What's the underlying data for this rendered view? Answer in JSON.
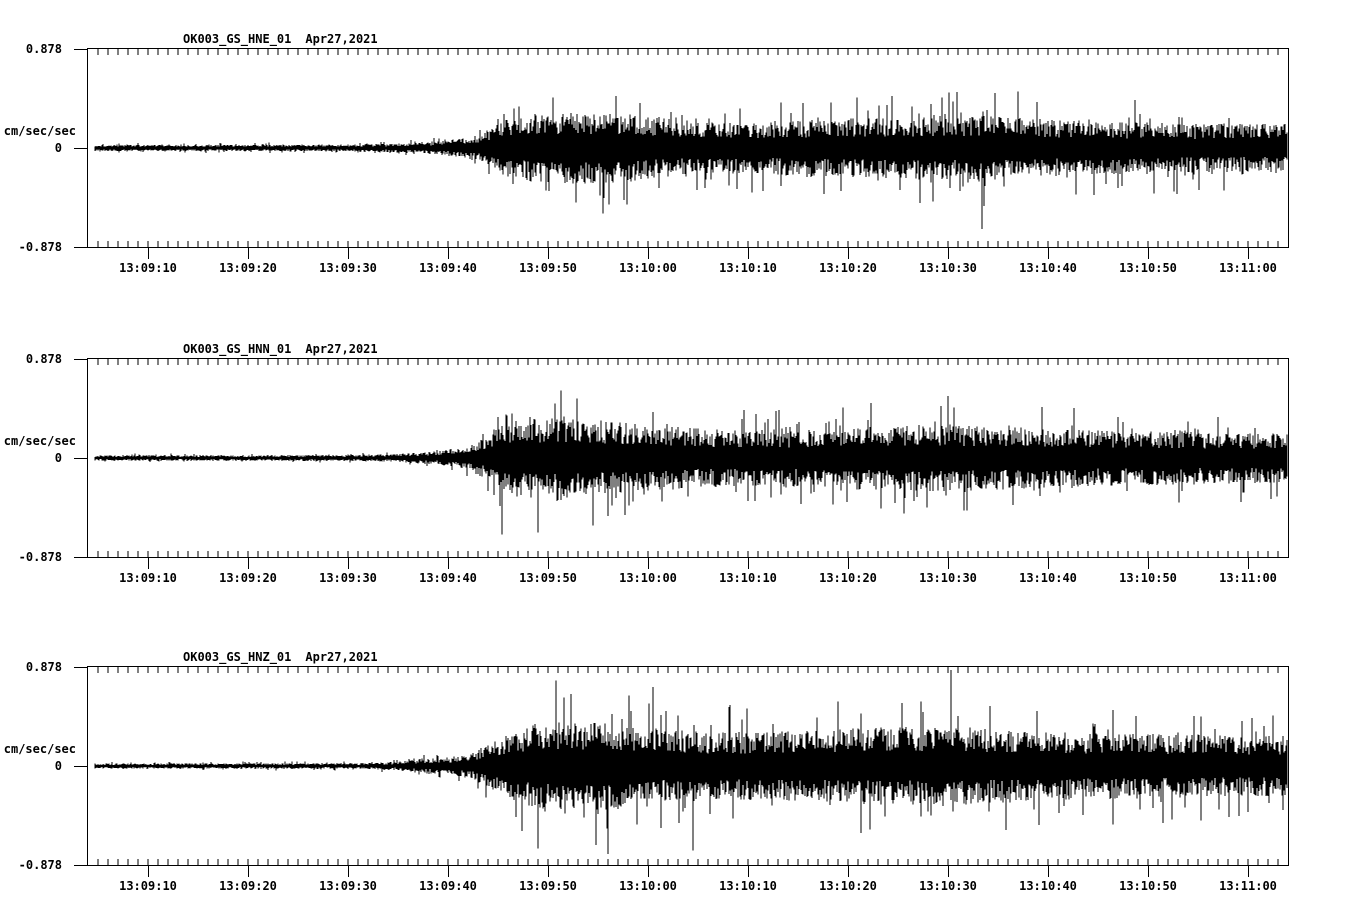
{
  "figure": {
    "background": "#ffffff",
    "ink": "#000000"
  },
  "chart_data": {
    "type": "line",
    "subtype": "seismogram-3-component",
    "title": "",
    "xlabel": "",
    "ylabel": "cm/sec/sec",
    "ylim": [
      -0.878,
      0.878
    ],
    "yticks": [
      "0.878",
      "0",
      "-0.878"
    ],
    "x_start": "13:09:04",
    "x_end": "13:11:04",
    "x_minor_tick_seconds": 1,
    "x_major_tick_seconds": 10,
    "grid": false,
    "legend": "none",
    "xtick_labels": [
      "13:09:10",
      "13:09:20",
      "13:09:30",
      "13:09:40",
      "13:09:50",
      "13:10:00",
      "13:10:10",
      "13:10:20",
      "13:10:30",
      "13:10:40",
      "13:10:50",
      "13:11:00"
    ],
    "panels": [
      {
        "station": "OK003_GS_HNE_01",
        "date": "Apr27,2021",
        "units": "cm/sec/sec",
        "y_top": "0.878",
        "y_mid": "0",
        "y_bottom": "-0.878",
        "seed": 101,
        "envelope": [
          [
            0,
            0.022,
            0.045
          ],
          [
            25,
            0.022,
            0.048
          ],
          [
            30,
            0.028,
            0.055
          ],
          [
            34,
            0.04,
            0.08
          ],
          [
            37,
            0.06,
            0.13
          ],
          [
            39.5,
            0.1,
            0.2
          ],
          [
            41,
            0.17,
            0.33
          ],
          [
            43.5,
            0.22,
            0.46
          ],
          [
            48,
            0.24,
            0.5
          ],
          [
            53,
            0.23,
            0.52
          ],
          [
            57,
            0.2,
            0.45
          ],
          [
            63,
            0.17,
            0.38
          ],
          [
            70,
            0.18,
            0.42
          ],
          [
            78,
            0.2,
            0.46
          ],
          [
            85,
            0.21,
            0.5
          ],
          [
            90,
            0.21,
            0.52
          ],
          [
            96,
            0.19,
            0.46
          ],
          [
            104,
            0.17,
            0.43
          ],
          [
            112,
            0.16,
            0.4
          ],
          [
            120,
            0.16,
            0.38
          ]
        ],
        "spikes": [
          [
            46.5,
            0.45
          ],
          [
            51.5,
            -0.58
          ],
          [
            89.4,
            -0.72
          ],
          [
            93,
            0.5
          ]
        ]
      },
      {
        "station": "OK003_GS_HNN_01",
        "date": "Apr27,2021",
        "units": "cm/sec/sec",
        "y_top": "0.878",
        "y_mid": "0",
        "y_bottom": "-0.878",
        "seed": 202,
        "envelope": [
          [
            0,
            0.018,
            0.038
          ],
          [
            26,
            0.02,
            0.042
          ],
          [
            31,
            0.026,
            0.05
          ],
          [
            35,
            0.045,
            0.09
          ],
          [
            38,
            0.08,
            0.17
          ],
          [
            40,
            0.15,
            0.3
          ],
          [
            41.5,
            0.24,
            0.5
          ],
          [
            44,
            0.27,
            0.58
          ],
          [
            47,
            0.28,
            0.62
          ],
          [
            51,
            0.25,
            0.55
          ],
          [
            56,
            0.22,
            0.48
          ],
          [
            62,
            0.19,
            0.42
          ],
          [
            70,
            0.19,
            0.44
          ],
          [
            78,
            0.21,
            0.5
          ],
          [
            85,
            0.22,
            0.52
          ],
          [
            90,
            0.21,
            0.5
          ],
          [
            97,
            0.19,
            0.46
          ],
          [
            105,
            0.18,
            0.43
          ],
          [
            113,
            0.17,
            0.41
          ],
          [
            120,
            0.17,
            0.4
          ]
        ],
        "spikes": [
          [
            41.4,
            -0.68
          ],
          [
            45,
            -0.66
          ],
          [
            47.3,
            0.6
          ],
          [
            50.5,
            -0.6
          ],
          [
            86,
            0.55
          ]
        ]
      },
      {
        "station": "OK003_GS_HNZ_01",
        "date": "Apr27,2021",
        "units": "cm/sec/sec",
        "y_top": "0.878",
        "y_mid": "0",
        "y_bottom": "-0.878",
        "seed": 303,
        "envelope": [
          [
            0,
            0.017,
            0.036
          ],
          [
            27,
            0.019,
            0.042
          ],
          [
            31,
            0.03,
            0.07
          ],
          [
            33.5,
            0.05,
            0.12
          ],
          [
            36,
            0.055,
            0.12
          ],
          [
            38.5,
            0.09,
            0.2
          ],
          [
            40.5,
            0.16,
            0.36
          ],
          [
            42.5,
            0.24,
            0.55
          ],
          [
            45,
            0.28,
            0.68
          ],
          [
            48,
            0.3,
            0.72
          ],
          [
            52,
            0.28,
            0.7
          ],
          [
            57,
            0.25,
            0.6
          ],
          [
            63,
            0.22,
            0.55
          ],
          [
            70,
            0.23,
            0.57
          ],
          [
            77,
            0.25,
            0.6
          ],
          [
            83,
            0.26,
            0.62
          ],
          [
            87,
            0.26,
            0.62
          ],
          [
            93,
            0.24,
            0.58
          ],
          [
            100,
            0.22,
            0.55
          ],
          [
            108,
            0.21,
            0.52
          ],
          [
            115,
            0.2,
            0.5
          ],
          [
            120,
            0.2,
            0.5
          ]
        ],
        "spikes": [
          [
            45,
            -0.73
          ],
          [
            46.8,
            0.76
          ],
          [
            52,
            -0.78
          ],
          [
            56.5,
            0.7
          ],
          [
            60.5,
            -0.75
          ],
          [
            86.3,
            0.85
          ]
        ]
      }
    ]
  }
}
